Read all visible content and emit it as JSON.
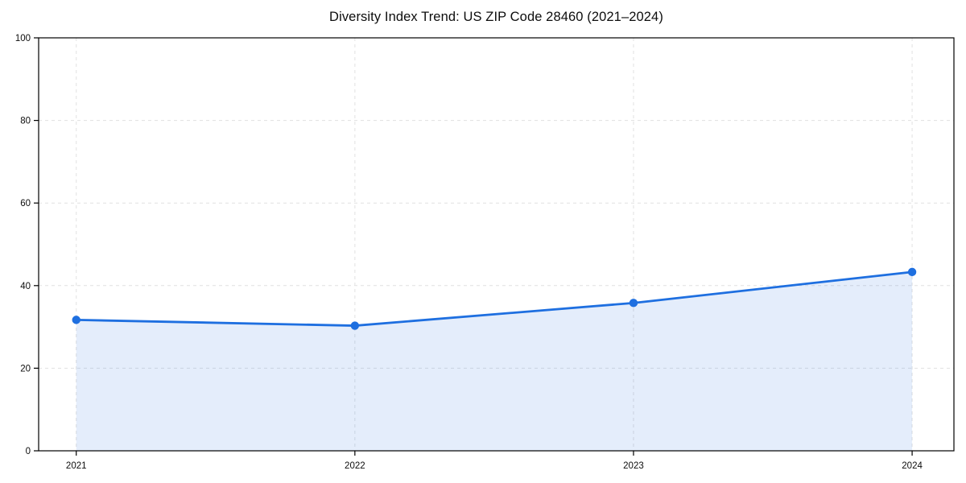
{
  "chart_data": {
    "type": "area",
    "title": "Diversity Index Trend: US ZIP Code 28460 (2021–2024)",
    "categories": [
      "2021",
      "2022",
      "2023",
      "2024"
    ],
    "x": [
      2021,
      2022,
      2023,
      2024
    ],
    "values": [
      31.7,
      30.3,
      35.8,
      43.3
    ],
    "series_name": "Diversity Index",
    "xlabel": "",
    "ylabel": "",
    "xlim": [
      2020.865,
      2024.15
    ],
    "ylim": [
      0,
      100
    ],
    "yticks": [
      0,
      20,
      40,
      60,
      80,
      100
    ],
    "grid": true,
    "grid_style": "dashed",
    "legend": false,
    "line_color": "#1e6fe0",
    "marker_color": "#1e6fe0",
    "fill_color": "#1e6fe0",
    "fill_opacity": 0.12,
    "grid_color": "#e1e1e1",
    "axis_color": "#000000",
    "tick_text_color": "#0d0d0d"
  }
}
